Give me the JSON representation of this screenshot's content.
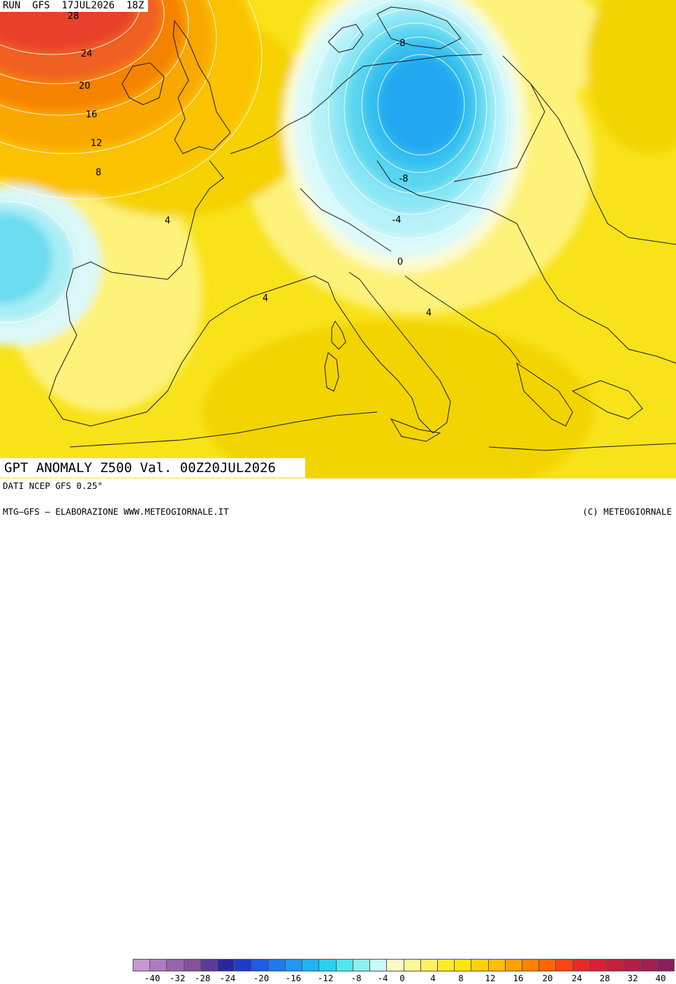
{
  "header": {
    "run": "RUN  GFS  17JUL2026  18Z"
  },
  "title": {
    "text": "GPT ANOMALY Z500 Val. 00Z20JUL2026"
  },
  "footer": {
    "data_source": "DATI NCEP GFS 0.25°",
    "credit_left": "MTG–GFS – ELABORAZIONE WWW.METEOGIORNALE.IT",
    "credit_right": "(C) METEOGIORNALE"
  },
  "map": {
    "region": "Europe / Mediterranean",
    "contour_labels": [
      "28",
      "24",
      "20",
      "16",
      "12",
      "8",
      "4",
      "-8",
      "-8",
      "-4",
      "0",
      "4",
      "4"
    ]
  },
  "legend": {
    "ticks": [
      "-40",
      "-32",
      "-28",
      "-24",
      "-20",
      "-16",
      "-12",
      "-8",
      "-4",
      "0",
      "4",
      "8",
      "12",
      "16",
      "20",
      "24",
      "28",
      "32",
      "40"
    ],
    "colors": [
      "#c896d2",
      "#b07ac0",
      "#9a63ae",
      "#84509c",
      "#5a3a9a",
      "#2828a0",
      "#1e3cc8",
      "#1e5ae6",
      "#1e78f0",
      "#1e96f5",
      "#1eb4f5",
      "#28d2f0",
      "#50e6f0",
      "#8cf0f5",
      "#c8fafa",
      "#fafac8",
      "#fafa96",
      "#fff064",
      "#ffeb28",
      "#ffe600",
      "#ffd200",
      "#ffbe00",
      "#ffa000",
      "#ff8200",
      "#ff6400",
      "#fa4614",
      "#eb2828",
      "#dc1e32",
      "#c81e3c",
      "#b41e46",
      "#a01e50",
      "#8c1e5a"
    ]
  }
}
